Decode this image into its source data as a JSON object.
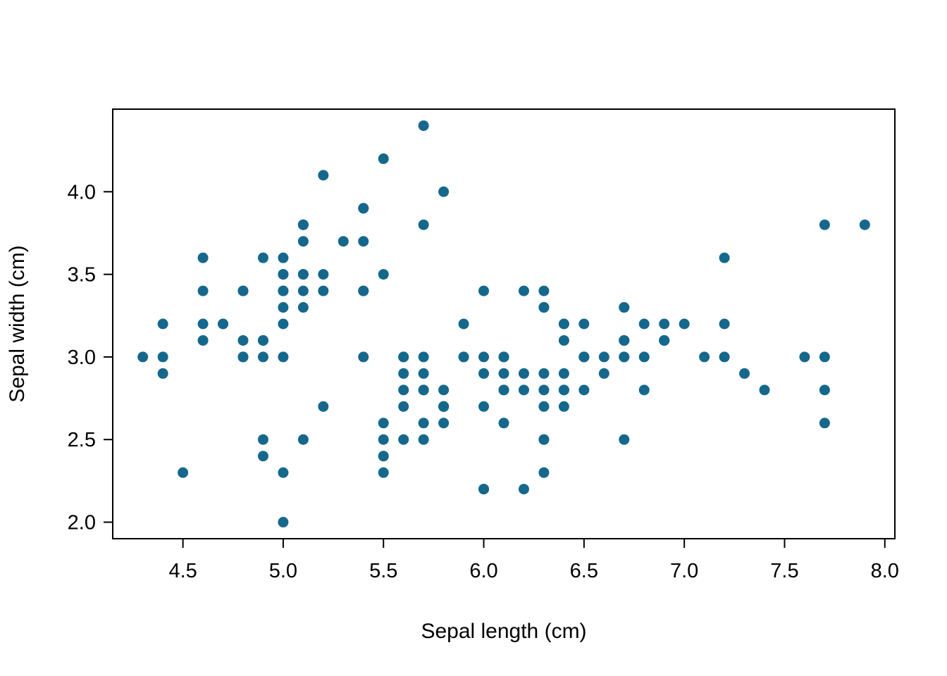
{
  "chart_data": {
    "type": "scatter",
    "title": "",
    "xlabel": "Sepal length (cm)",
    "ylabel": "Sepal width (cm)",
    "xlim": [
      4.15,
      8.05
    ],
    "ylim": [
      1.9,
      4.5
    ],
    "x_ticks": [
      4.5,
      5.0,
      5.5,
      6.0,
      6.5,
      7.0,
      7.5,
      8.0
    ],
    "y_ticks": [
      2.0,
      2.5,
      3.0,
      3.5,
      4.0
    ],
    "grid": false,
    "legend": false,
    "point_color": "#15688c",
    "frame_color": "#000000",
    "background_color": "#ffffff",
    "points": [
      [
        5.1,
        3.5
      ],
      [
        4.9,
        3.0
      ],
      [
        4.7,
        3.2
      ],
      [
        4.6,
        3.1
      ],
      [
        5.0,
        3.6
      ],
      [
        5.4,
        3.9
      ],
      [
        4.6,
        3.4
      ],
      [
        5.0,
        3.4
      ],
      [
        4.4,
        2.9
      ],
      [
        4.9,
        3.1
      ],
      [
        5.4,
        3.7
      ],
      [
        4.8,
        3.4
      ],
      [
        4.8,
        3.0
      ],
      [
        4.3,
        3.0
      ],
      [
        5.8,
        4.0
      ],
      [
        5.7,
        4.4
      ],
      [
        5.4,
        3.9
      ],
      [
        5.1,
        3.5
      ],
      [
        5.7,
        3.8
      ],
      [
        5.1,
        3.8
      ],
      [
        5.4,
        3.4
      ],
      [
        5.1,
        3.7
      ],
      [
        4.6,
        3.6
      ],
      [
        5.1,
        3.3
      ],
      [
        4.8,
        3.4
      ],
      [
        5.0,
        3.0
      ],
      [
        5.0,
        3.4
      ],
      [
        5.2,
        3.5
      ],
      [
        5.2,
        3.4
      ],
      [
        4.7,
        3.2
      ],
      [
        4.8,
        3.1
      ],
      [
        5.4,
        3.4
      ],
      [
        5.2,
        4.1
      ],
      [
        5.5,
        4.2
      ],
      [
        4.9,
        3.1
      ],
      [
        5.0,
        3.2
      ],
      [
        5.5,
        3.5
      ],
      [
        4.9,
        3.6
      ],
      [
        4.4,
        3.0
      ],
      [
        5.1,
        3.4
      ],
      [
        5.0,
        3.5
      ],
      [
        4.5,
        2.3
      ],
      [
        4.4,
        3.2
      ],
      [
        5.0,
        3.5
      ],
      [
        5.1,
        3.8
      ],
      [
        4.8,
        3.0
      ],
      [
        5.1,
        3.8
      ],
      [
        4.6,
        3.2
      ],
      [
        5.3,
        3.7
      ],
      [
        5.0,
        3.3
      ],
      [
        7.0,
        3.2
      ],
      [
        6.4,
        3.2
      ],
      [
        6.9,
        3.1
      ],
      [
        5.5,
        2.3
      ],
      [
        6.5,
        2.8
      ],
      [
        5.7,
        2.8
      ],
      [
        6.3,
        3.3
      ],
      [
        4.9,
        2.4
      ],
      [
        6.6,
        2.9
      ],
      [
        5.2,
        2.7
      ],
      [
        5.0,
        2.0
      ],
      [
        5.9,
        3.0
      ],
      [
        6.0,
        2.2
      ],
      [
        6.1,
        2.9
      ],
      [
        5.6,
        2.9
      ],
      [
        6.7,
        3.1
      ],
      [
        5.6,
        3.0
      ],
      [
        5.8,
        2.7
      ],
      [
        6.2,
        2.2
      ],
      [
        5.6,
        2.5
      ],
      [
        5.9,
        3.2
      ],
      [
        6.1,
        2.8
      ],
      [
        6.3,
        2.5
      ],
      [
        6.1,
        2.8
      ],
      [
        6.4,
        2.9
      ],
      [
        6.6,
        3.0
      ],
      [
        6.8,
        2.8
      ],
      [
        6.7,
        3.0
      ],
      [
        6.0,
        2.9
      ],
      [
        5.7,
        2.6
      ],
      [
        5.5,
        2.4
      ],
      [
        5.5,
        2.4
      ],
      [
        5.8,
        2.7
      ],
      [
        6.0,
        2.7
      ],
      [
        5.4,
        3.0
      ],
      [
        6.0,
        3.4
      ],
      [
        6.7,
        3.1
      ],
      [
        6.3,
        2.3
      ],
      [
        5.6,
        3.0
      ],
      [
        5.5,
        2.5
      ],
      [
        5.5,
        2.6
      ],
      [
        6.1,
        3.0
      ],
      [
        5.8,
        2.6
      ],
      [
        5.0,
        2.3
      ],
      [
        5.6,
        2.7
      ],
      [
        5.7,
        3.0
      ],
      [
        5.7,
        2.9
      ],
      [
        6.2,
        2.9
      ],
      [
        5.1,
        2.5
      ],
      [
        5.7,
        2.8
      ],
      [
        6.3,
        3.3
      ],
      [
        5.8,
        2.7
      ],
      [
        7.1,
        3.0
      ],
      [
        6.3,
        2.9
      ],
      [
        6.5,
        3.0
      ],
      [
        7.6,
        3.0
      ],
      [
        4.9,
        2.5
      ],
      [
        7.3,
        2.9
      ],
      [
        6.7,
        2.5
      ],
      [
        7.2,
        3.6
      ],
      [
        6.5,
        3.2
      ],
      [
        6.4,
        2.7
      ],
      [
        6.8,
        3.0
      ],
      [
        5.7,
        2.5
      ],
      [
        5.8,
        2.8
      ],
      [
        6.4,
        3.2
      ],
      [
        6.5,
        3.0
      ],
      [
        7.7,
        3.8
      ],
      [
        7.7,
        2.6
      ],
      [
        6.0,
        2.2
      ],
      [
        6.9,
        3.2
      ],
      [
        5.6,
        2.8
      ],
      [
        7.7,
        2.8
      ],
      [
        6.3,
        2.7
      ],
      [
        6.7,
        3.3
      ],
      [
        7.2,
        3.2
      ],
      [
        6.2,
        2.8
      ],
      [
        6.1,
        3.0
      ],
      [
        6.4,
        2.8
      ],
      [
        7.2,
        3.0
      ],
      [
        7.4,
        2.8
      ],
      [
        7.9,
        3.8
      ],
      [
        6.4,
        2.8
      ],
      [
        6.3,
        2.8
      ],
      [
        6.1,
        2.6
      ],
      [
        7.7,
        3.0
      ],
      [
        6.3,
        3.4
      ],
      [
        6.4,
        3.1
      ],
      [
        6.0,
        3.0
      ],
      [
        6.9,
        3.1
      ],
      [
        6.7,
        3.1
      ],
      [
        6.9,
        3.1
      ],
      [
        5.8,
        2.7
      ],
      [
        6.8,
        3.2
      ],
      [
        6.7,
        3.3
      ],
      [
        6.7,
        3.0
      ],
      [
        6.3,
        2.5
      ],
      [
        6.5,
        3.0
      ],
      [
        6.2,
        3.4
      ],
      [
        5.9,
        3.0
      ]
    ]
  }
}
